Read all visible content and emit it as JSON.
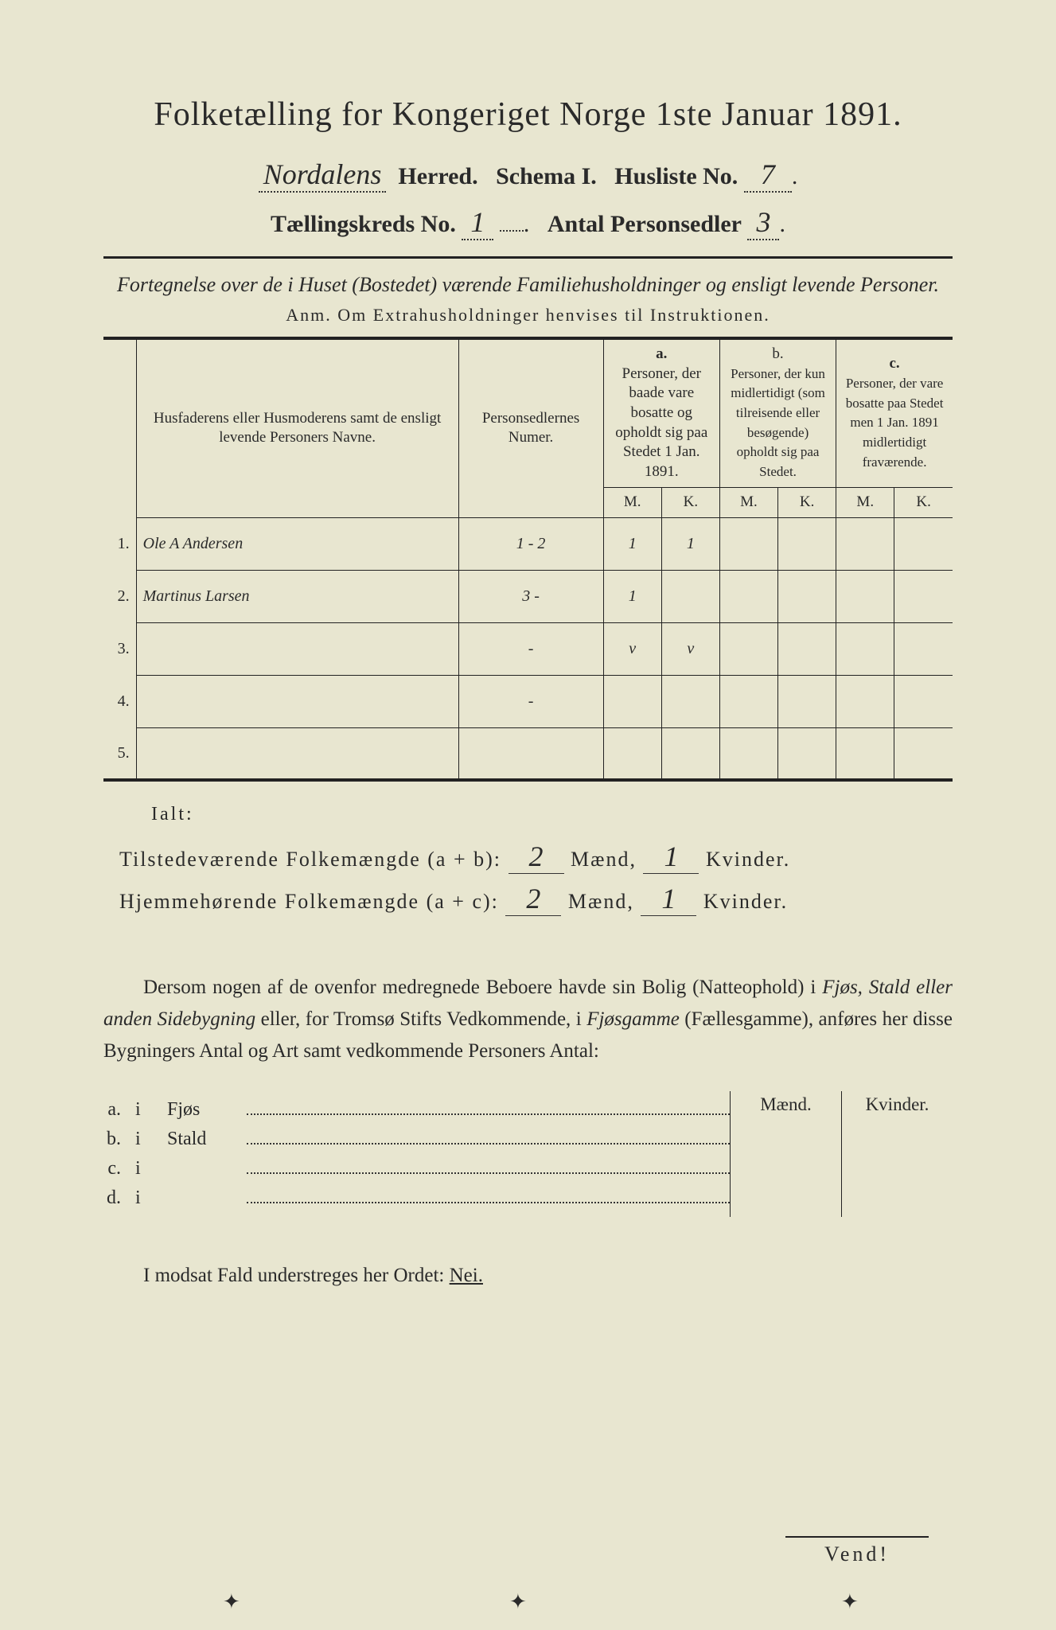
{
  "title": "Folketælling for Kongeriget Norge 1ste Januar 1891.",
  "herred_value": "Nordalens",
  "herred_label": "Herred.",
  "schema_label": "Schema I.",
  "husliste_label": "Husliste No.",
  "husliste_value": "7",
  "kreds_label": "Tællingskreds No.",
  "kreds_value": "1",
  "antal_label": "Antal Personsedler",
  "antal_value": "3",
  "description": "Fortegnelse over de i Huset (Bostedet) værende Familiehusholdninger og ensligt levende Personer.",
  "anm": "Anm.  Om Extrahusholdninger henvises til Instruktionen.",
  "headers": {
    "names": "Husfaderens eller Husmoderens samt de ensligt levende Personers Navne.",
    "numer": "Personsedlernes Numer.",
    "a_label": "a.",
    "a_text": "Personer, der baade vare bosatte og opholdt sig paa Stedet 1 Jan. 1891.",
    "b_label": "b.",
    "b_text": "Personer, der kun midlertidigt (som tilreisende eller besøgende) opholdt sig paa Stedet.",
    "c_label": "c.",
    "c_text": "Personer, der vare bosatte paa Stedet men 1 Jan. 1891 midlertidigt fraværende.",
    "m": "M.",
    "k": "K."
  },
  "rows": [
    {
      "n": "1.",
      "name": "Ole A Andersen",
      "num": "1 - 2",
      "am": "1",
      "ak": "1",
      "bm": "",
      "bk": "",
      "cm": "",
      "ck": ""
    },
    {
      "n": "2.",
      "name": "Martinus Larsen",
      "num": "3 -",
      "am": "1",
      "ak": "",
      "bm": "",
      "bk": "",
      "cm": "",
      "ck": ""
    },
    {
      "n": "3.",
      "name": "",
      "num": "-",
      "am": "v",
      "ak": "v",
      "bm": "",
      "bk": "",
      "cm": "",
      "ck": ""
    },
    {
      "n": "4.",
      "name": "",
      "num": "-",
      "am": "",
      "ak": "",
      "bm": "",
      "bk": "",
      "cm": "",
      "ck": ""
    },
    {
      "n": "5.",
      "name": "",
      "num": "",
      "am": "",
      "ak": "",
      "bm": "",
      "bk": "",
      "cm": "",
      "ck": ""
    }
  ],
  "ialt": "Ialt:",
  "sum1_label": "Tilstedeværende Folkemængde (a + b):",
  "sum2_label": "Hjemmehørende Folkemængde (a + c):",
  "maend": "Mænd,",
  "kvinder": "Kvinder.",
  "sum1_m": "2",
  "sum1_k": "1",
  "sum2_m": "2",
  "sum2_k": "1",
  "paragraph": "Dersom nogen af de ovenfor medregnede Beboere havde sin Bolig (Natteophold) i Fjøs, Stald eller anden Sidebygning eller, for Tromsø Stifts Vedkommende, i Fjøsgamme (Fællesgamme), anføres her disse Bygningers Antal og Art samt vedkommende Personers Antal:",
  "bygning": {
    "maend": "Mænd.",
    "kvinder": "Kvinder.",
    "rows": [
      {
        "lbl": "a.",
        "i": "i",
        "type": "Fjøs"
      },
      {
        "lbl": "b.",
        "i": "i",
        "type": "Stald"
      },
      {
        "lbl": "c.",
        "i": "i",
        "type": ""
      },
      {
        "lbl": "d.",
        "i": "i",
        "type": ""
      }
    ]
  },
  "modsat_pre": "I modsat Fald understreges her Ordet: ",
  "modsat_nei": "Nei.",
  "vend": "Vend!"
}
